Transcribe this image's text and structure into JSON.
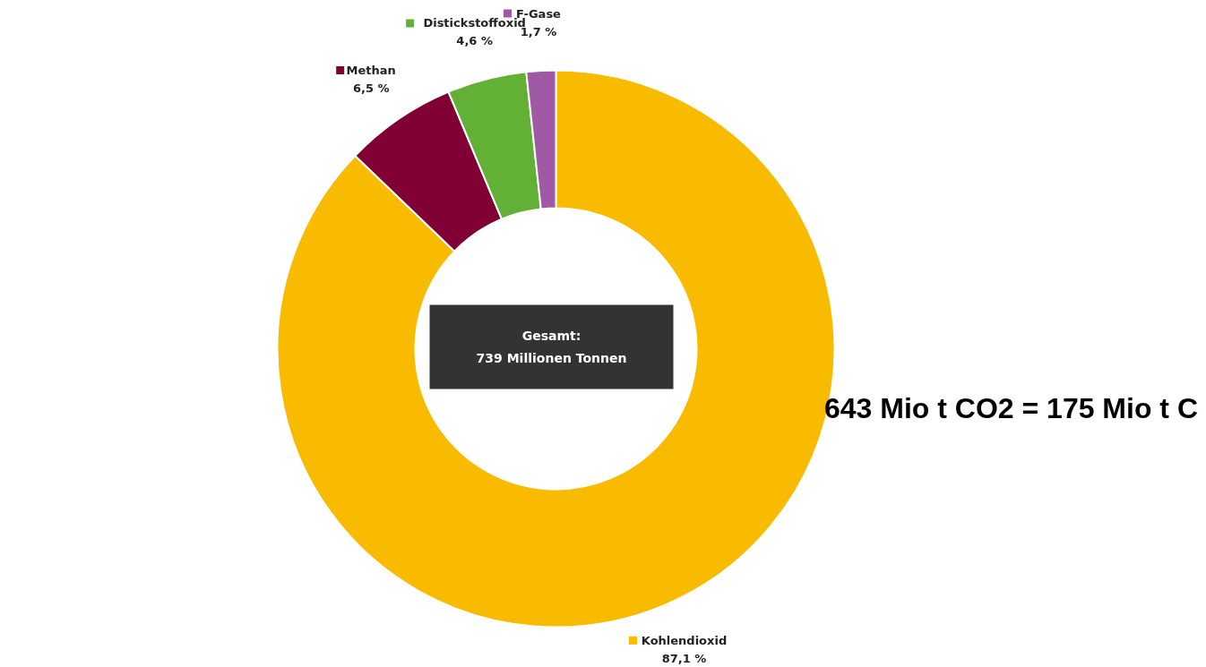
{
  "chart_data": {
    "type": "donut",
    "categories": [
      "Kohlendioxid",
      "Methan",
      "Distickstoffoxid",
      "F-Gase"
    ],
    "values": [
      87.1,
      6.5,
      4.6,
      1.7
    ],
    "legend": "top",
    "colors": [
      "#f9bb00",
      "#800035",
      "#62b036",
      "#a05aa5"
    ],
    "value_labels": [
      "87,1 %",
      "6,5 %",
      "4,6 %",
      "1,7 %"
    ],
    "annotations": [
      "Gesamt:\n739 Millionen Tonnen",
      "643 Mio t CO2 = 175 Mio t C"
    ]
  }
}
